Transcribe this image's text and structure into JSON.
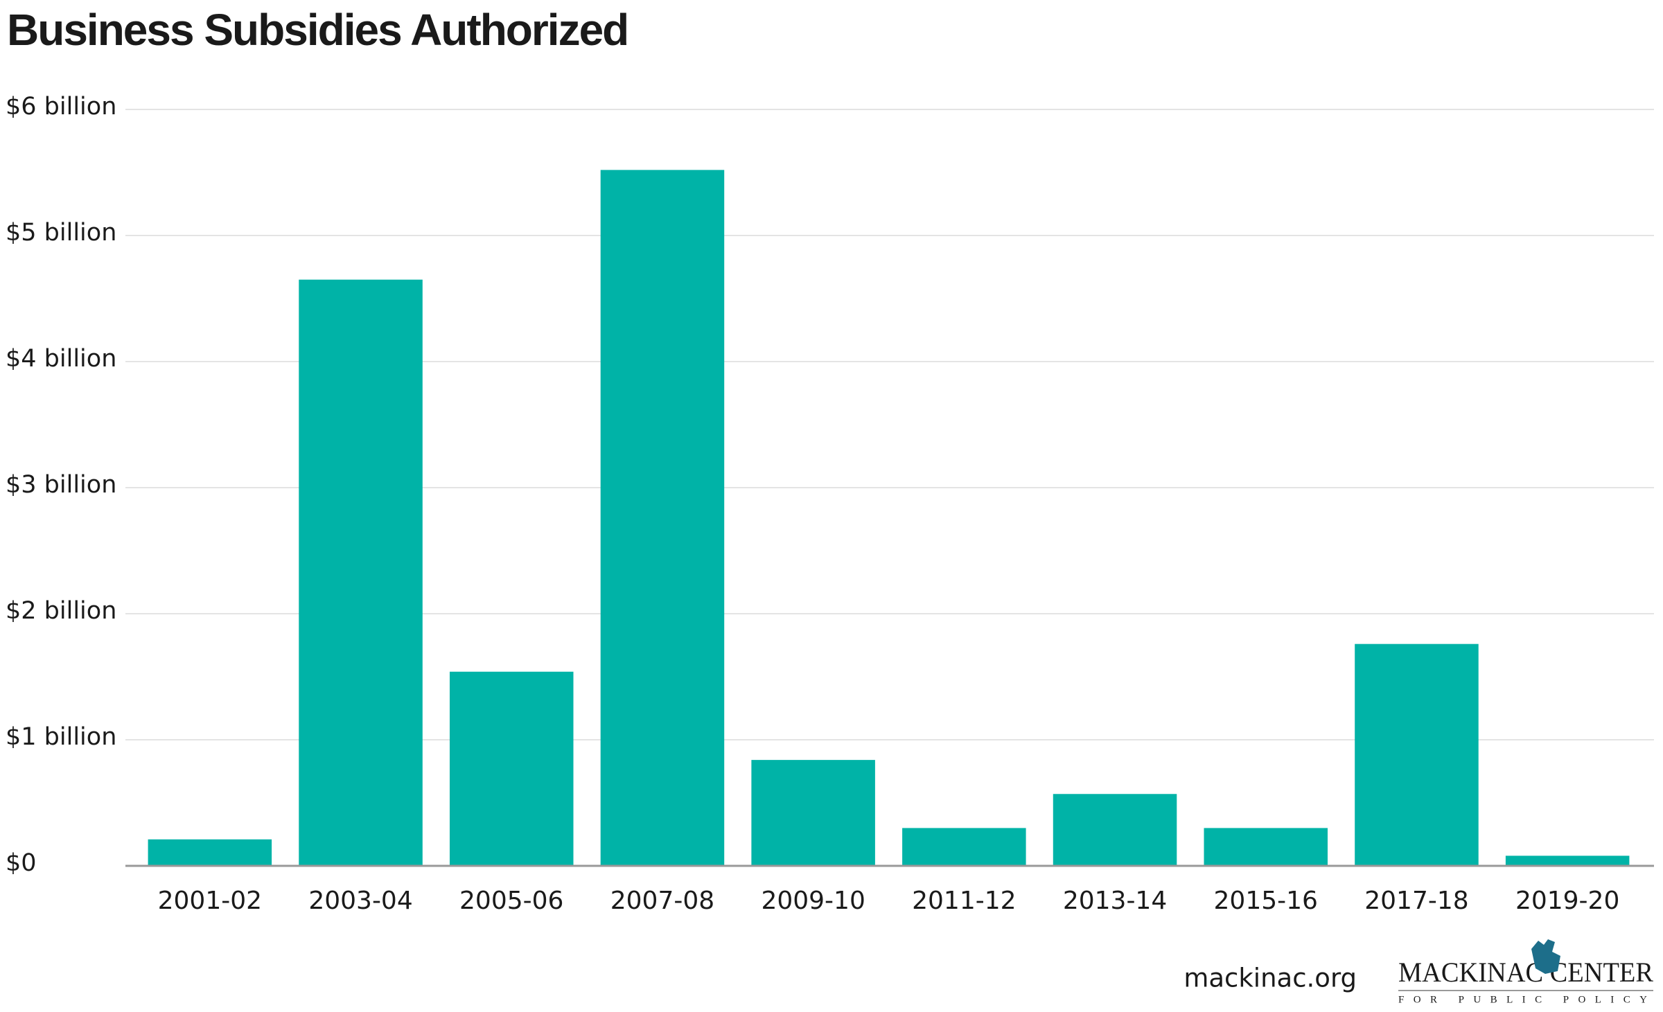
{
  "chart_data": {
    "type": "bar",
    "title": "Business Subsidies Authorized",
    "categories": [
      "2001-02",
      "2003-04",
      "2005-06",
      "2007-08",
      "2009-10",
      "2011-12",
      "2013-14",
      "2015-16",
      "2017-18",
      "2019-20"
    ],
    "values": [
      0.21,
      4.65,
      1.54,
      5.52,
      0.84,
      0.3,
      0.57,
      0.3,
      1.76,
      0.08
    ],
    "color": "#00b3a7",
    "ylim": [
      0,
      6
    ],
    "yticks": [
      {
        "value": 0,
        "label": "$0"
      },
      {
        "value": 1,
        "label": "$1 billion"
      },
      {
        "value": 2,
        "label": "$2 billion"
      },
      {
        "value": 3,
        "label": "$3 billion"
      },
      {
        "value": 4,
        "label": "$4 billion"
      },
      {
        "value": 5,
        "label": "$5 billion"
      },
      {
        "value": 6,
        "label": "$6 billion"
      }
    ],
    "grid": true
  },
  "footer": {
    "site": "mackinac.org",
    "logo": "MACKINAC CENTER",
    "logo_subtitle": "FOR PUBLIC POLICY"
  }
}
